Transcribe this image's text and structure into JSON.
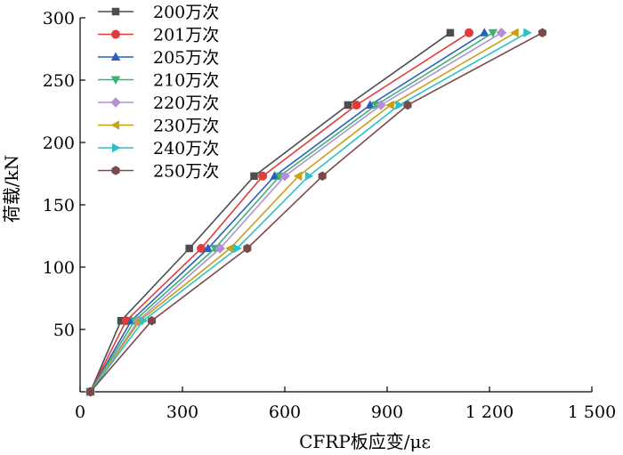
{
  "chart_data": {
    "type": "line",
    "title": "",
    "xlabel": "CFRP板应变/με",
    "ylabel": "荷载/kN",
    "xlim": [
      0,
      1500
    ],
    "ylim": [
      0,
      300
    ],
    "xticks": [
      0,
      300,
      600,
      900,
      1200,
      1500
    ],
    "xtick_labels": [
      "0",
      "300",
      "600",
      "900",
      "1 200",
      "1 500"
    ],
    "yticks": [
      50,
      100,
      150,
      200,
      250,
      300
    ],
    "ytick_labels": [
      "50",
      "100",
      "150",
      "200",
      "250",
      "300"
    ],
    "grid": false,
    "legend_position": "top-left",
    "series": [
      {
        "name": "200万次",
        "color": "#4d4d4d",
        "marker": "square",
        "points": [
          [
            30,
            0
          ],
          [
            120,
            57
          ],
          [
            320,
            115
          ],
          [
            510,
            173
          ],
          [
            785,
            230
          ],
          [
            1085,
            288
          ]
        ]
      },
      {
        "name": "201万次",
        "color": "#e03c3c",
        "marker": "circle",
        "points": [
          [
            30,
            0
          ],
          [
            135,
            57
          ],
          [
            355,
            115
          ],
          [
            535,
            173
          ],
          [
            810,
            230
          ],
          [
            1140,
            288
          ]
        ]
      },
      {
        "name": "205万次",
        "color": "#2e5fb8",
        "marker": "triangle-up",
        "points": [
          [
            30,
            0
          ],
          [
            150,
            57
          ],
          [
            375,
            115
          ],
          [
            570,
            173
          ],
          [
            850,
            230
          ],
          [
            1185,
            288
          ]
        ]
      },
      {
        "name": "210万次",
        "color": "#3cb371",
        "marker": "triangle-down",
        "points": [
          [
            30,
            0
          ],
          [
            160,
            57
          ],
          [
            395,
            115
          ],
          [
            585,
            173
          ],
          [
            868,
            230
          ],
          [
            1210,
            288
          ]
        ]
      },
      {
        "name": "220万次",
        "color": "#b48fd6",
        "marker": "diamond",
        "points": [
          [
            30,
            0
          ],
          [
            170,
            57
          ],
          [
            410,
            115
          ],
          [
            600,
            173
          ],
          [
            882,
            230
          ],
          [
            1235,
            288
          ]
        ]
      },
      {
        "name": "230万次",
        "color": "#c8a013",
        "marker": "triangle-left",
        "points": [
          [
            30,
            0
          ],
          [
            175,
            57
          ],
          [
            440,
            115
          ],
          [
            640,
            173
          ],
          [
            910,
            230
          ],
          [
            1275,
            288
          ]
        ]
      },
      {
        "name": "240万次",
        "color": "#2ec0c8",
        "marker": "triangle-right",
        "points": [
          [
            30,
            0
          ],
          [
            185,
            57
          ],
          [
            460,
            115
          ],
          [
            670,
            173
          ],
          [
            935,
            230
          ],
          [
            1310,
            288
          ]
        ]
      },
      {
        "name": "250万次",
        "color": "#7a4a4a",
        "marker": "hexagon",
        "points": [
          [
            30,
            0
          ],
          [
            210,
            57
          ],
          [
            490,
            115
          ],
          [
            710,
            173
          ],
          [
            960,
            230
          ],
          [
            1355,
            288
          ]
        ]
      }
    ]
  }
}
